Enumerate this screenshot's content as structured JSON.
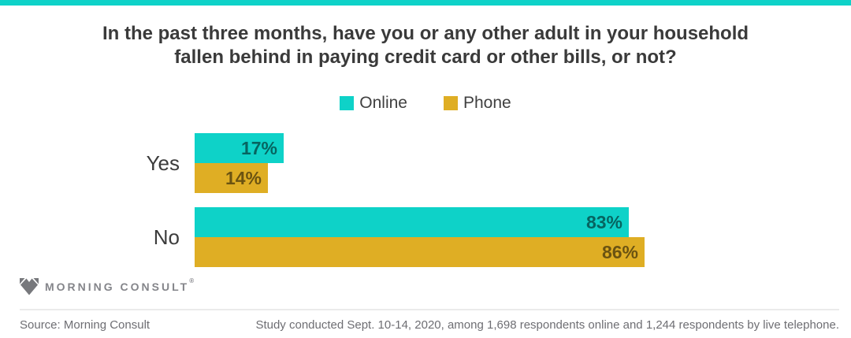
{
  "accent_color": "#0ED2C8",
  "title": {
    "lines": [
      "In the past three months, have you or any other adult in your household",
      "fallen behind in paying credit card or other bills, or not?"
    ]
  },
  "legend": {
    "items": [
      {
        "label": "Online",
        "color": "#0ED2C8"
      },
      {
        "label": "Phone",
        "color": "#DFAE24"
      }
    ]
  },
  "chart_data": {
    "type": "bar",
    "orientation": "horizontal",
    "title": "In the past three months, have you or any other adult in your household fallen behind in paying credit card or other bills, or not?",
    "categories": [
      "Yes",
      "No"
    ],
    "series": [
      {
        "name": "Online",
        "color": "#0ED2C8",
        "values": [
          17,
          83
        ]
      },
      {
        "name": "Phone",
        "color": "#DFAE24",
        "values": [
          14,
          86
        ]
      }
    ],
    "value_format": "percent",
    "xlim": [
      0,
      100
    ],
    "axis_lines": "none",
    "grid": "off",
    "legend_position": "top-center",
    "bars": [
      {
        "category": "Yes",
        "series": "Online",
        "value": 17,
        "label": "17%"
      },
      {
        "category": "Yes",
        "series": "Phone",
        "value": 14,
        "label": "14%"
      },
      {
        "category": "No",
        "series": "Online",
        "value": 83,
        "label": "83%"
      },
      {
        "category": "No",
        "series": "Phone",
        "value": 86,
        "label": "86%"
      }
    ]
  },
  "branding": {
    "logo_text": "MORNING CONSULT",
    "trademark": "®"
  },
  "footer": {
    "source": "Source: Morning Consult",
    "note": "Study conducted Sept. 10-14, 2020, among 1,698 respondents online and 1,244 respondents by live telephone."
  }
}
